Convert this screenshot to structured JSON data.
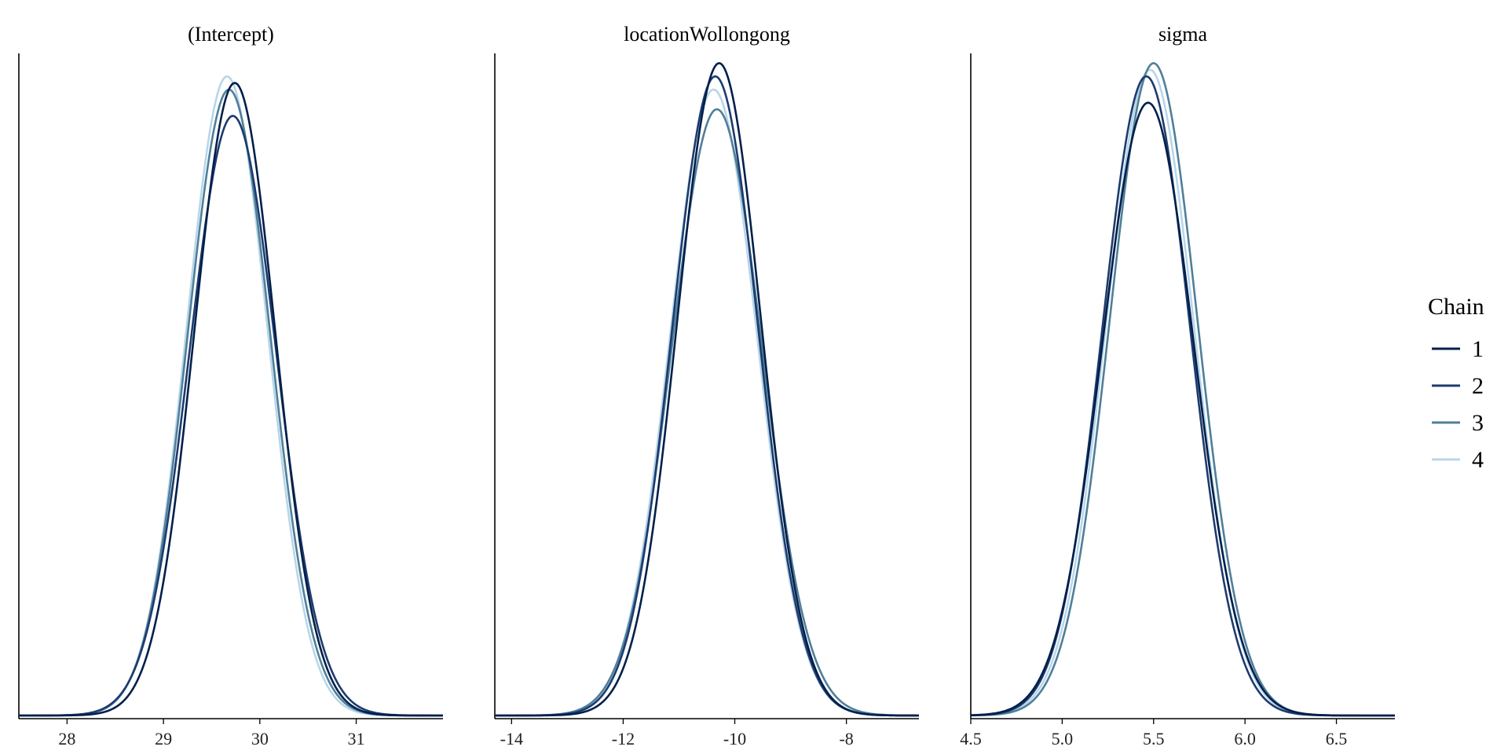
{
  "chart_data": {
    "type": "line",
    "chart_kind": "density overlay by chain",
    "legend": {
      "title": "Chain",
      "placement": "right",
      "entries": [
        {
          "label": "1",
          "color": "#011f4b"
        },
        {
          "label": "2",
          "color": "#1d3b6e"
        },
        {
          "label": "3",
          "color": "#4f7f99"
        },
        {
          "label": "4",
          "color": "#b8d6ea"
        }
      ]
    },
    "panels": [
      {
        "title": "(Intercept)",
        "xlim": [
          27.5,
          31.9
        ],
        "ticks": [
          28,
          29,
          30,
          31
        ],
        "tick_labels": [
          "28",
          "29",
          "30",
          "31"
        ],
        "series": [
          {
            "name": "1",
            "center": 29.74,
            "sd": 0.42,
            "peak": 0.96
          },
          {
            "name": "2",
            "center": 29.72,
            "sd": 0.45,
            "peak": 0.91
          },
          {
            "name": "3",
            "center": 29.68,
            "sd": 0.43,
            "peak": 0.95
          },
          {
            "name": "4",
            "center": 29.66,
            "sd": 0.42,
            "peak": 0.97
          }
        ]
      },
      {
        "title": "locationWollongong",
        "xlim": [
          -14.3,
          -6.7
        ],
        "ticks": [
          -14,
          -12,
          -10,
          -8
        ],
        "tick_labels": [
          "-14",
          "-12",
          "-10",
          "-8"
        ],
        "series": [
          {
            "name": "1",
            "center": -10.28,
            "sd": 0.75,
            "peak": 0.99
          },
          {
            "name": "2",
            "center": -10.35,
            "sd": 0.77,
            "peak": 0.97
          },
          {
            "name": "3",
            "center": -10.32,
            "sd": 0.81,
            "peak": 0.92
          },
          {
            "name": "4",
            "center": -10.38,
            "sd": 0.78,
            "peak": 0.95
          }
        ]
      },
      {
        "title": "sigma",
        "xlim": [
          4.5,
          6.82
        ],
        "ticks": [
          4.5,
          5.0,
          5.5,
          6.0,
          6.5
        ],
        "tick_labels": [
          "4.5",
          "5.0",
          "5.5",
          "6.0",
          "6.5"
        ],
        "series": [
          {
            "name": "1",
            "center": 5.47,
            "sd": 0.25,
            "peak": 0.93
          },
          {
            "name": "2",
            "center": 5.46,
            "sd": 0.24,
            "peak": 0.97
          },
          {
            "name": "3",
            "center": 5.5,
            "sd": 0.24,
            "peak": 0.99
          },
          {
            "name": "4",
            "center": 5.48,
            "sd": 0.24,
            "peak": 0.98
          }
        ]
      }
    ]
  }
}
